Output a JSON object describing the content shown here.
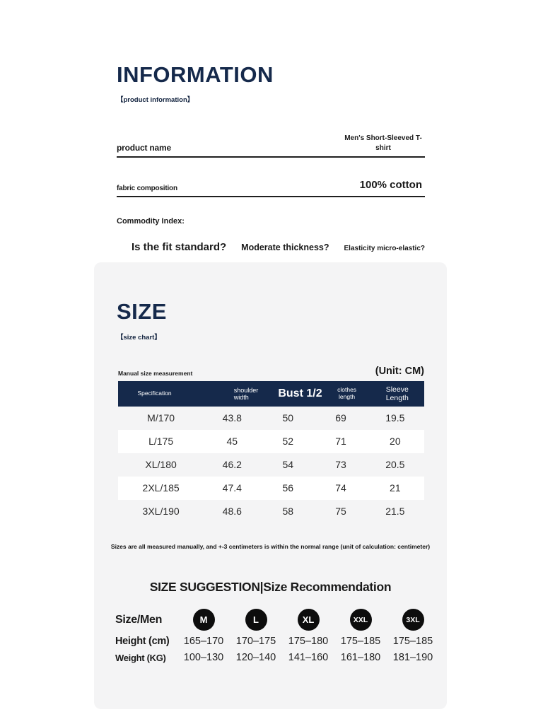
{
  "colors": {
    "navy": "#15294b",
    "card_bg": "#f4f4f5",
    "badge_black": "#0d0d0d"
  },
  "info": {
    "title": "INFORMATION",
    "subtitle": "【product information】",
    "rows": [
      {
        "label": "product name",
        "value": "Men's Short-Sleeved T-shirt"
      },
      {
        "label": "fabric composition",
        "value": "100% cotton"
      }
    ],
    "commodity_index_label": "Commodity Index:",
    "questions": [
      "Is the fit standard?",
      "Moderate thickness?",
      "Elasticity micro-elastic?"
    ]
  },
  "size_section": {
    "title": "SIZE",
    "subtitle": "【size chart】",
    "measure_note": "Manual size measurement",
    "unit_label": "(Unit: CM)",
    "table": {
      "headers": [
        "Specification",
        "shoulder width",
        "Bust 1/2",
        "clothes length",
        "Sleeve Length"
      ],
      "rows": [
        [
          "M/170",
          "43.8",
          "50",
          "69",
          "19.5"
        ],
        [
          "L/175",
          "45",
          "52",
          "71",
          "20"
        ],
        [
          "XL/180",
          "46.2",
          "54",
          "73",
          "20.5"
        ],
        [
          "2XL/185",
          "47.4",
          "56",
          "74",
          "21"
        ],
        [
          "3XL/190",
          "48.6",
          "58",
          "75",
          "21.5"
        ]
      ]
    },
    "note": "Sizes are all measured manually, and +-3 centimeters is within the normal range (unit of calculation: centimeter)",
    "suggestion": {
      "title": "SIZE SUGGESTION|Size Recommendation",
      "row_labels": [
        "Size/Men",
        "Height (cm)",
        "Weight (KG)"
      ],
      "sizes": [
        "M",
        "L",
        "XL",
        "XXL",
        "3XL"
      ],
      "heights": [
        "165–170",
        "170–175",
        "175–180",
        "175–185",
        "175–185"
      ],
      "weights": [
        "100–130",
        "120–140",
        "141–160",
        "161–180",
        "181–190"
      ]
    }
  }
}
